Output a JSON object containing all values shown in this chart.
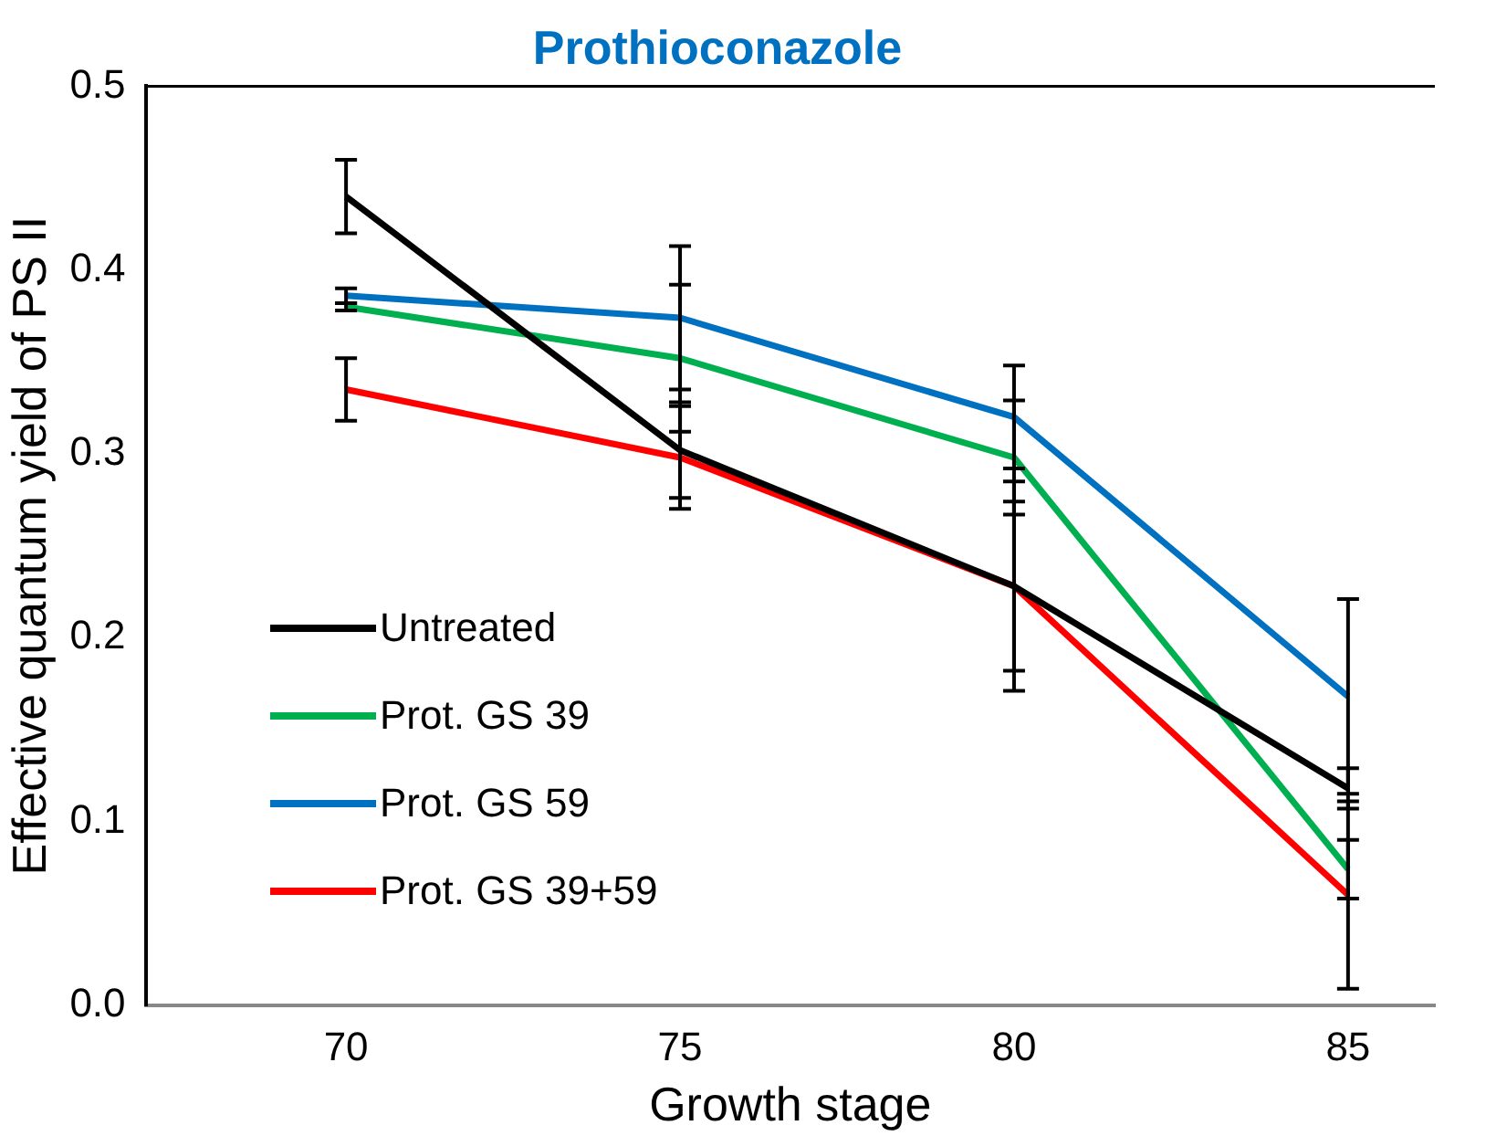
{
  "chart_data": {
    "type": "line",
    "title": "Prothioconazole",
    "xlabel": "Growth stage",
    "ylabel": "Effective quantum yield of PS II",
    "x": [
      70,
      75,
      80,
      85
    ],
    "xlim": [
      67,
      86.3
    ],
    "xticks": [
      70,
      75,
      80,
      85
    ],
    "ylim": [
      0,
      0.5
    ],
    "yticks": [
      {
        "value": 0,
        "label": "0.0"
      },
      0.1,
      0.2,
      0.3,
      0.4,
      0.5
    ],
    "grid": false,
    "legend": "bottom left",
    "marker": "none",
    "line_style": "solid",
    "series": [
      {
        "name": "Untreated",
        "color": "#000000",
        "values": [
          0.44,
          0.302,
          0.228,
          0.118
        ],
        "errors": [
          0.02,
          0.026,
          0.057,
          0.011
        ]
      },
      {
        "name": "Prot. GS 39",
        "color": "#00b050",
        "values": [
          0.38,
          0.352,
          0.298,
          0.074
        ],
        "errors": [
          0.002,
          0.04,
          0.031,
          0.016
        ]
      },
      {
        "name": "Prot. GS 59",
        "color": "#0070c0",
        "values": [
          0.386,
          0.374,
          0.32,
          0.168
        ],
        "errors": [
          0.004,
          0.039,
          0.028,
          0.053
        ]
      },
      {
        "name": "Prot. GS 39+59",
        "color": "#ff0000",
        "values": [
          0.335,
          0.298,
          0.228,
          0.06
        ],
        "errors": [
          0.017,
          0.028,
          0.046,
          0.051
        ]
      }
    ]
  }
}
